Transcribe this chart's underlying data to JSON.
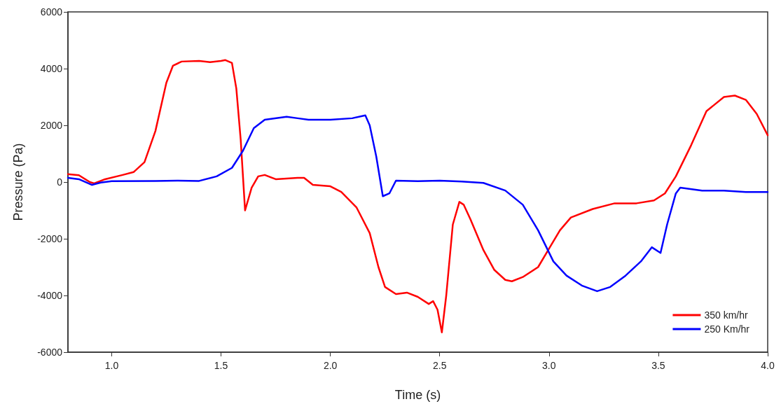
{
  "chart_data": {
    "type": "line",
    "xlabel": "Time (s)",
    "ylabel": "Pressure (Pa)",
    "xlim": [
      0.8,
      4.0
    ],
    "xticks": [
      {
        "value": 1.0,
        "label": "1.0"
      },
      {
        "value": 1.5,
        "label": "1.5"
      },
      {
        "value": 2.0,
        "label": "2.0"
      },
      {
        "value": 2.5,
        "label": "2.5"
      },
      {
        "value": 3.0,
        "label": "3.0"
      },
      {
        "value": 3.5,
        "label": "3.5"
      },
      {
        "value": 4.0,
        "label": "4.0"
      }
    ],
    "ylim": [
      -6000,
      6000
    ],
    "yticks": [
      -6000,
      -4000,
      -2000,
      0,
      2000,
      4000,
      6000
    ],
    "grid": false,
    "legend": "bottom right",
    "marker": "none",
    "line_style": "solid",
    "series": [
      {
        "name": "350 km/hr",
        "color": "#ff0000",
        "x": [
          0.8,
          0.85,
          0.9,
          0.92,
          0.97,
          1.05,
          1.1,
          1.15,
          1.2,
          1.25,
          1.28,
          1.32,
          1.4,
          1.45,
          1.5,
          1.52,
          1.55,
          1.57,
          1.59,
          1.61,
          1.64,
          1.67,
          1.7,
          1.75,
          1.85,
          1.88,
          1.92,
          2.0,
          2.05,
          2.12,
          2.18,
          2.22,
          2.25,
          2.3,
          2.35,
          2.4,
          2.45,
          2.47,
          2.49,
          2.51,
          2.53,
          2.56,
          2.59,
          2.61,
          2.64,
          2.7,
          2.75,
          2.8,
          2.83,
          2.88,
          2.95,
          3.0,
          3.05,
          3.1,
          3.2,
          3.3,
          3.4,
          3.48,
          3.53,
          3.58,
          3.65,
          3.72,
          3.8,
          3.85,
          3.9,
          3.95,
          4.0
        ],
        "values": [
          280,
          240,
          0,
          -50,
          100,
          250,
          350,
          700,
          1800,
          3500,
          4100,
          4250,
          4270,
          4230,
          4270,
          4300,
          4200,
          3300,
          1500,
          -1000,
          -200,
          200,
          250,
          100,
          150,
          150,
          -100,
          -150,
          -350,
          -900,
          -1800,
          -3000,
          -3700,
          -3950,
          -3900,
          -4050,
          -4300,
          -4200,
          -4500,
          -5300,
          -4000,
          -1500,
          -700,
          -800,
          -1300,
          -2400,
          -3100,
          -3450,
          -3500,
          -3350,
          -3000,
          -2350,
          -1700,
          -1250,
          -950,
          -750,
          -750,
          -650,
          -400,
          200,
          1300,
          2500,
          3000,
          3050,
          2900,
          2400,
          1650
        ]
      },
      {
        "name": "250 Km/hr",
        "color": "#0000ff",
        "x": [
          0.8,
          0.85,
          0.91,
          0.95,
          1.0,
          1.2,
          1.3,
          1.4,
          1.48,
          1.55,
          1.6,
          1.65,
          1.7,
          1.8,
          1.85,
          1.9,
          2.0,
          2.1,
          2.16,
          2.18,
          2.21,
          2.24,
          2.27,
          2.3,
          2.4,
          2.5,
          2.6,
          2.7,
          2.8,
          2.88,
          2.95,
          3.02,
          3.08,
          3.15,
          3.22,
          3.28,
          3.35,
          3.42,
          3.47,
          3.51,
          3.54,
          3.58,
          3.6,
          3.7,
          3.8,
          3.9,
          4.0
        ],
        "values": [
          150,
          100,
          -100,
          -20,
          30,
          40,
          50,
          40,
          200,
          500,
          1100,
          1900,
          2200,
          2300,
          2250,
          2200,
          2200,
          2250,
          2350,
          2000,
          900,
          -500,
          -400,
          50,
          30,
          50,
          20,
          -30,
          -300,
          -800,
          -1700,
          -2800,
          -3300,
          -3650,
          -3850,
          -3700,
          -3300,
          -2800,
          -2300,
          -2500,
          -1500,
          -400,
          -200,
          -300,
          -300,
          -350,
          -350
        ]
      }
    ]
  }
}
